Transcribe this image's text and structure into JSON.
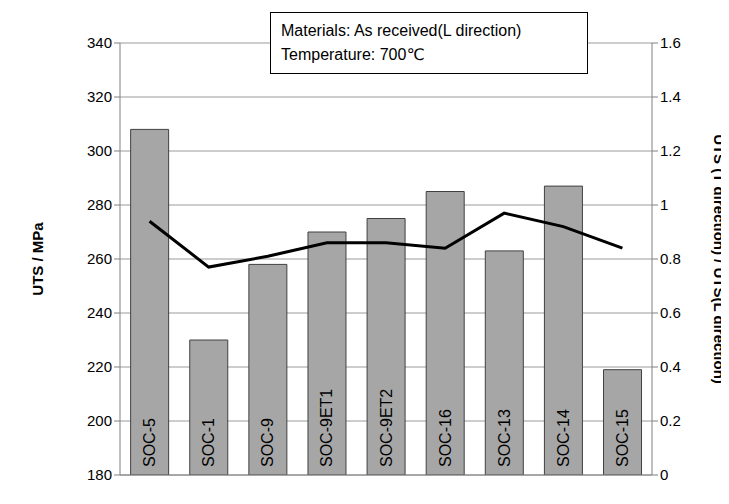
{
  "chart_data": {
    "type": "bar",
    "annotation": [
      "Materials: As received(L direction)",
      "Temperature: 700℃"
    ],
    "y_label": "UTS / MPa",
    "y2_label": "UTS (T direction) / UTS(L direction)",
    "categories": [
      "SOC-5",
      "SOC-1",
      "SOC-9",
      "SOC-9ET1",
      "SOC-9ET2",
      "SOC-16",
      "SOC-13",
      "SOC-14",
      "SOC-15"
    ],
    "series": [
      {
        "type": "bar",
        "color": "#a6a6a6",
        "values": [
          308,
          230,
          258,
          270,
          275,
          285,
          263,
          287,
          219
        ]
      },
      {
        "type": "line",
        "axis": "y2",
        "color": "#000000",
        "marker": "none",
        "line_style": "solid",
        "values": [
          0.94,
          0.77,
          0.81,
          0.86,
          0.86,
          0.84,
          0.97,
          0.92,
          0.84
        ]
      }
    ],
    "ylim": [
      180,
      340
    ],
    "yticks": [
      180,
      200,
      220,
      240,
      260,
      280,
      300,
      320,
      340
    ],
    "y2lim": [
      0,
      1.6
    ],
    "y2ticks": [
      0,
      0.2,
      0.4,
      0.6,
      0.8,
      1,
      1.2,
      1.4,
      1.6
    ],
    "grid": true
  }
}
